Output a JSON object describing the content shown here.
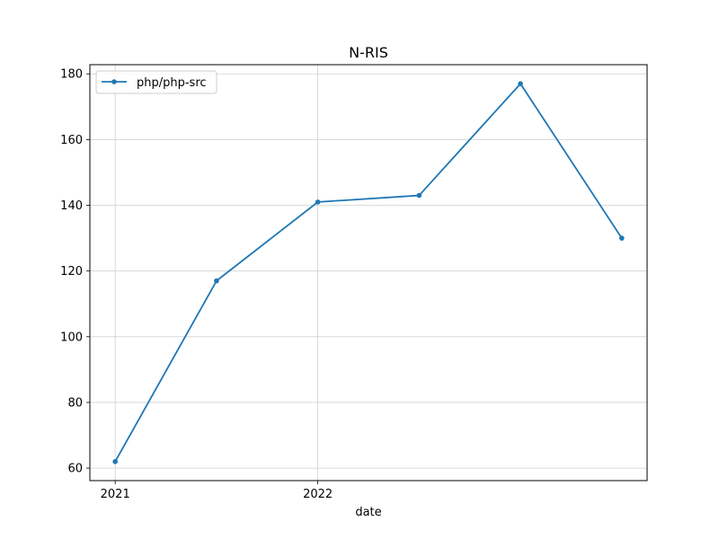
{
  "chart_data": {
    "type": "line",
    "title": "N-RIS",
    "xlabel": "date",
    "ylabel": "",
    "x": [
      "2021-01",
      "2021-07",
      "2022-01",
      "2022-07",
      "2023-01",
      "2023-07"
    ],
    "x_ticks": [
      {
        "value": "2021-01",
        "label": "2021"
      },
      {
        "value": "2022-01",
        "label": "2022"
      }
    ],
    "y_ticks": [
      60,
      80,
      100,
      120,
      140,
      160,
      180
    ],
    "ylim": [
      56.2,
      182.8
    ],
    "grid": true,
    "legend_position": "upper-left",
    "series": [
      {
        "name": "php/php-src",
        "color": "#1f77b4",
        "marker": "dot",
        "values": [
          62,
          117,
          141,
          143,
          177,
          130
        ]
      }
    ]
  }
}
